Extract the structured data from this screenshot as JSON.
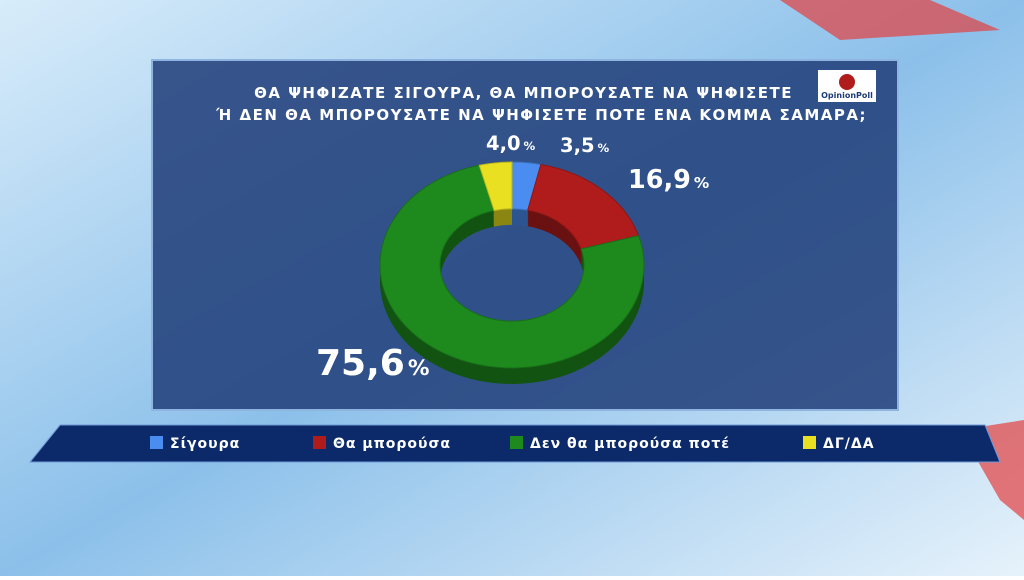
{
  "chart_data": {
    "type": "donut",
    "title_lines": [
      "ΘΑ ΨΗΦΙΖΑΤΕ ΣΙΓΟΥΡΑ, ΘΑ ΜΠΟΡΟΥΣΑΤΕ ΝΑ ΨΗΦΙΣΕΤΕ",
      "Ή ΔΕΝ ΘΑ ΜΠΟΡΟΥΣΑΤΕ ΝΑ ΨΗΦΙΣΕΤΕ ΠΟΤΕ ΕΝΑ ΚΟΜΜΑ ΣΑΜΑΡΑ;"
    ],
    "logo": "OpinionPoll",
    "categories": [
      "Σίγουρα",
      "Θα μπορούσα",
      "Δεν θα μπορούσα ποτέ",
      "ΔΓ/ΔΑ"
    ],
    "values": [
      3.5,
      16.9,
      75.6,
      4.0
    ],
    "value_labels": [
      "3,5",
      "16,9",
      "75,6",
      "4,0"
    ],
    "unit": "%",
    "colors": [
      "#4a8cf0",
      "#b01c1c",
      "#1e8a1e",
      "#e8e020"
    ],
    "legend": "bottom"
  }
}
